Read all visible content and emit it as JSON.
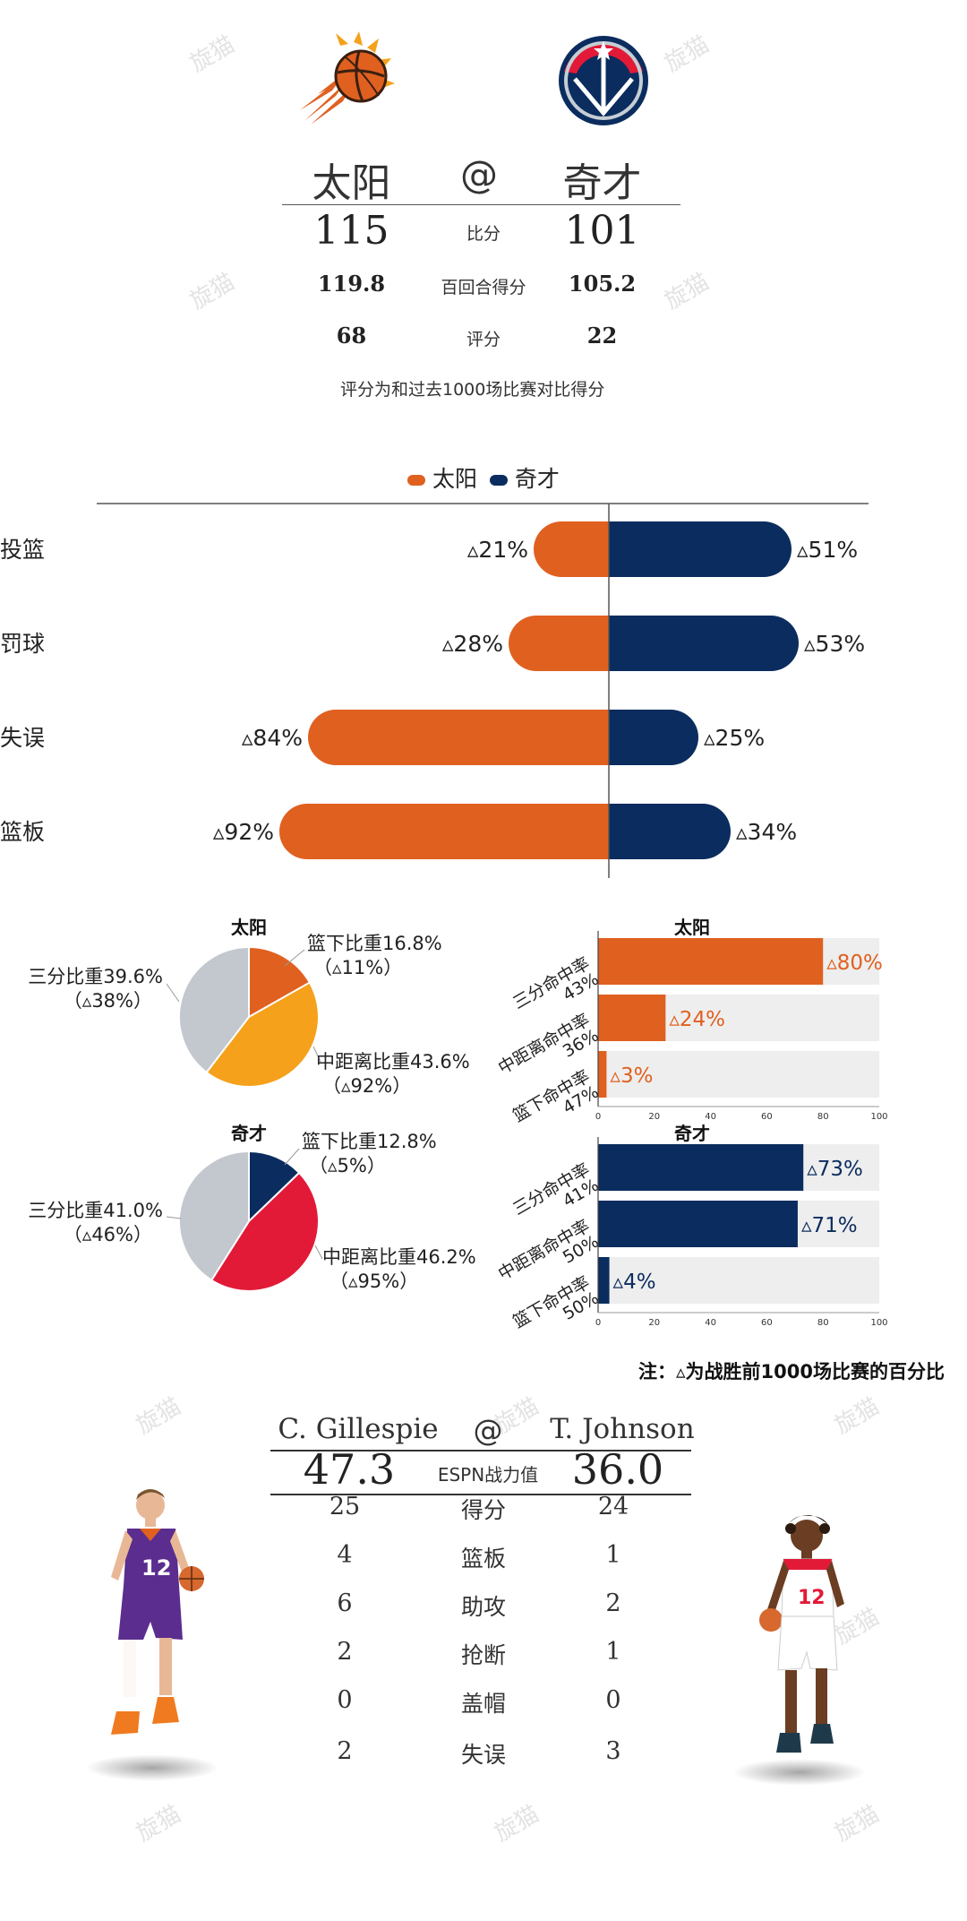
{
  "colors": {
    "suns": "#e06020",
    "wizards": "#0b2c5e",
    "suns_mid": "#f5a11c",
    "wizards_mid": "#e21a38",
    "three_gray": "#c3c8cf",
    "track": "#eeeeee"
  },
  "header": {
    "home_team": "太阳",
    "at": "@",
    "away_team": "奇才",
    "rows": [
      {
        "label": "比分",
        "home": "115",
        "away": "101"
      },
      {
        "label": "百回合得分",
        "home": "119.8",
        "away": "105.2"
      },
      {
        "label": "评分",
        "home": "68",
        "away": "22"
      }
    ],
    "note": "评分为和过去1000场比赛对比得分"
  },
  "watermark": "旋猫",
  "chart_data": [
    {
      "type": "bar",
      "orientation": "diverging-horizontal",
      "legend": [
        "太阳",
        "奇才"
      ],
      "categories": [
        "投篮",
        "罚球",
        "失误",
        "篮板"
      ],
      "series": [
        {
          "name": "太阳",
          "values": [
            21,
            28,
            84,
            92
          ],
          "labels": [
            "▵21%",
            "▵28%",
            "▵84%",
            "▵92%"
          ]
        },
        {
          "name": "奇才",
          "values": [
            51,
            53,
            25,
            34
          ],
          "labels": [
            "▵51%",
            "▵53%",
            "▵25%",
            "▵34%"
          ]
        }
      ],
      "xlim": [
        0,
        100
      ]
    },
    {
      "type": "pie",
      "title": "太阳",
      "slices": [
        {
          "name": "篮下比重16.8%",
          "value": 16.8,
          "sub": "（▵11%）"
        },
        {
          "name": "中距离比重43.6%",
          "value": 43.6,
          "sub": "（▵92%）"
        },
        {
          "name": "三分比重39.6%",
          "value": 39.6,
          "sub": "（▵38%）"
        }
      ]
    },
    {
      "type": "pie",
      "title": "奇才",
      "slices": [
        {
          "name": "篮下比重12.8%",
          "value": 12.8,
          "sub": "（▵5%）"
        },
        {
          "name": "中距离比重46.2%",
          "value": 46.2,
          "sub": "（▵95%）"
        },
        {
          "name": "三分比重41.0%",
          "value": 41.0,
          "sub": "（▵46%）"
        }
      ]
    },
    {
      "type": "bar",
      "orientation": "horizontal",
      "title": "太阳",
      "categories": [
        {
          "name": "三分命中率",
          "pct": "43%"
        },
        {
          "name": "中距离命中率",
          "pct": "36%"
        },
        {
          "name": "篮下命中率",
          "pct": "47%"
        }
      ],
      "values": [
        80,
        24,
        3
      ],
      "labels": [
        "▵80%",
        "▵24%",
        "▵3%"
      ],
      "xlim": [
        0,
        100
      ],
      "ticks": [
        "0",
        "20",
        "40",
        "60",
        "80",
        "100"
      ]
    },
    {
      "type": "bar",
      "orientation": "horizontal",
      "title": "奇才",
      "categories": [
        {
          "name": "三分命中率",
          "pct": "41%"
        },
        {
          "name": "中距离命中率",
          "pct": "50%"
        },
        {
          "name": "篮下命中率",
          "pct": "50%"
        }
      ],
      "values": [
        73,
        71,
        4
      ],
      "labels": [
        "▵73%",
        "▵71%",
        "▵4%"
      ],
      "xlim": [
        0,
        100
      ],
      "ticks": [
        "0",
        "20",
        "40",
        "60",
        "80",
        "100"
      ]
    }
  ],
  "footnote": "注：▵为战胜前1000场比赛的百分比",
  "players": {
    "left_name": "C. Gillespie",
    "at": "@",
    "right_name": "T. Johnson",
    "espn_label": "ESPN战力值",
    "left_espn": "47.3",
    "right_espn": "36.0",
    "left_jersey": "12",
    "right_jersey": "12",
    "stats": [
      {
        "label": "得分",
        "left": "25",
        "right": "24"
      },
      {
        "label": "篮板",
        "left": "4",
        "right": "1"
      },
      {
        "label": "助攻",
        "left": "6",
        "right": "2"
      },
      {
        "label": "抢断",
        "left": "2",
        "right": "1"
      },
      {
        "label": "盖帽",
        "left": "0",
        "right": "0"
      },
      {
        "label": "失误",
        "left": "2",
        "right": "3"
      }
    ]
  }
}
